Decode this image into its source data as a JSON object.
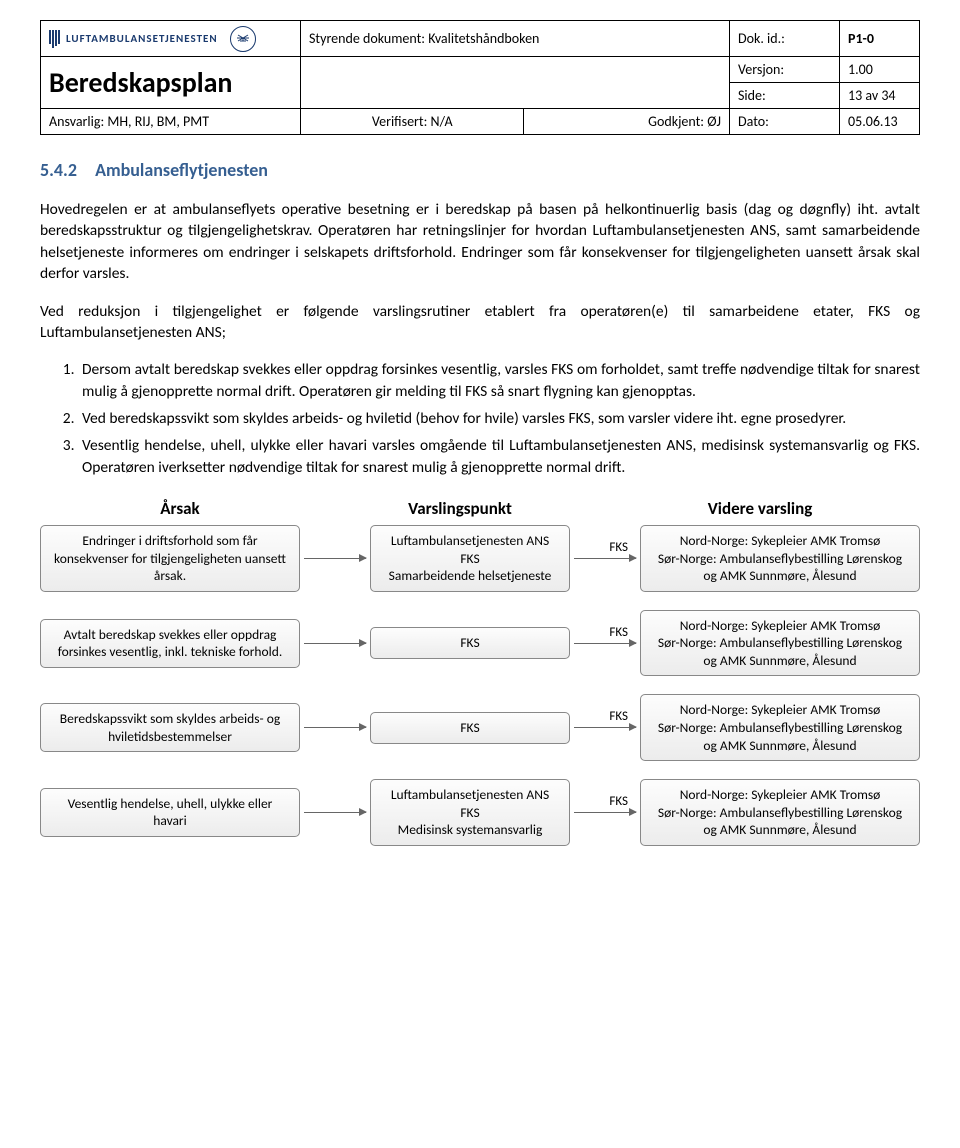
{
  "header": {
    "logo_text": "LUFTAMBULANSETJENESTEN",
    "doc_type_label": "Styrende dokument:",
    "doc_type_value": "Kvalitetshåndboken",
    "dok_id_label": "Dok. id.:",
    "dok_id_value": "P1-0",
    "plan_title": "Beredskapsplan",
    "versjon_label": "Versjon:",
    "versjon_value": "1.00",
    "side_label": "Side:",
    "side_value": "13 av 34",
    "ansvarlig_label": "Ansvarlig:",
    "ansvarlig_value": "MH, RIJ, BM, PMT",
    "verifisert_label": "Verifisert:",
    "verifisert_value": "N/A",
    "godkjent_label": "Godkjent:",
    "godkjent_value": "ØJ",
    "dato_label": "Dato:",
    "dato_value": "05.06.13"
  },
  "section": {
    "number": "5.4.2",
    "title": "Ambulanseflytjenesten"
  },
  "body": {
    "p1": "Hovedregelen er at ambulanseflyets operative besetning er i beredskap på basen på helkontinuerlig basis (dag og døgnfly) iht. avtalt beredskapsstruktur og tilgjengelighetskrav. Operatøren har retningslinjer for hvordan Luftambulansetjenesten ANS, samt samarbeidende helsetjeneste informeres om endringer i selskapets driftsforhold. Endringer som får konsekvenser for tilgjengeligheten uansett årsak skal derfor varsles.",
    "p2": "Ved reduksjon i tilgjengelighet er følgende varslingsrutiner etablert fra operatøren(e) til samarbeidene etater, FKS og Luftambulansetjenesten ANS;",
    "li1": "Dersom avtalt beredskap svekkes eller oppdrag forsinkes vesentlig, varsles FKS om forholdet, samt treffe nødvendige tiltak for snarest mulig å gjenopprette normal drift. Operatøren gir melding til FKS så snart flygning kan gjenopptas.",
    "li2": "Ved beredskapssvikt som skyldes arbeids- og hviletid (behov for hvile) varsles FKS, som varsler videre iht. egne prosedyrer.",
    "li3": "Vesentlig hendelse, uhell, ulykke eller havari varsles omgående til Luftambulansetjenesten ANS, medisinsk systemansvarlig og FKS. Operatøren iverksetter nødvendige tiltak for snarest mulig å gjenopprette normal drift."
  },
  "flow": {
    "headers": {
      "h1": "Årsak",
      "h2": "Varslingspunkt",
      "h3": "Videre varsling"
    },
    "connector_label": "FKS",
    "rows": [
      {
        "left": "Endringer i driftsforhold som får konsekvenser for tilgjengeligheten uansett årsak.",
        "mid": "Luftambulansetjenesten ANS\nFKS\nSamarbeidende helsetjeneste",
        "right": "Nord-Norge: Sykepleier AMK Tromsø\nSør-Norge: Ambulanseflybestilling Lørenskog og AMK Sunnmøre, Ålesund"
      },
      {
        "left": "Avtalt beredskap svekkes eller oppdrag forsinkes vesentlig, inkl. tekniske forhold.",
        "mid": "FKS",
        "right": "Nord-Norge: Sykepleier AMK Tromsø\nSør-Norge: Ambulanseflybestilling Lørenskog og AMK Sunnmøre, Ålesund"
      },
      {
        "left": "Beredskapssvikt som skyldes arbeids- og hviletidsbestemmelser",
        "mid": "FKS",
        "right": "Nord-Norge: Sykepleier AMK Tromsø\nSør-Norge: Ambulanseflybestilling Lørenskog og AMK Sunnmøre, Ålesund"
      },
      {
        "left": "Vesentlig hendelse, uhell, ulykke eller havari",
        "mid": "Luftambulansetjenesten ANS\nFKS\nMedisinsk systemansvarlig",
        "right": "Nord-Norge: Sykepleier AMK Tromsø\nSør-Norge: Ambulanseflybestilling Lørenskog og AMK Sunnmøre, Ålesund"
      }
    ]
  },
  "colors": {
    "heading": "#365f91",
    "logo": "#1a3a6e",
    "box_border": "#888888",
    "box_bg_top": "#fdfdfd",
    "box_bg_bottom": "#ececec",
    "connector": "#666666"
  }
}
